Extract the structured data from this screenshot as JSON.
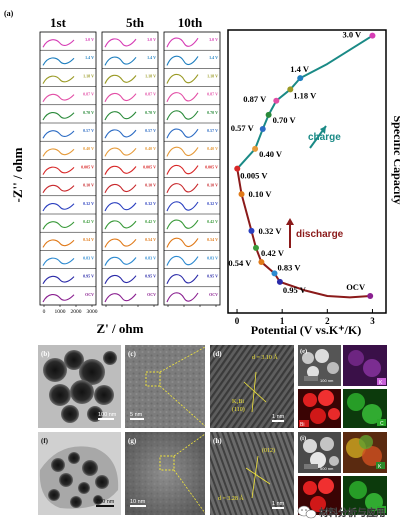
{
  "figure": {
    "panel_a_label": "(a)",
    "cycle_headers": [
      "1st",
      "5th",
      "10th"
    ],
    "ylabel": "-Z'' / ohm",
    "xlabel": "Z' / ohm",
    "x_ticks": [
      "0",
      "1000",
      "2000",
      "3000"
    ],
    "eis_rows": [
      {
        "label": "3.0 V",
        "color": "#d63db5"
      },
      {
        "label": "1.4 V",
        "color": "#1f7fbf"
      },
      {
        "label": "1.18 V",
        "color": "#9a9a25"
      },
      {
        "label": "0.87 V",
        "color": "#e24ea6"
      },
      {
        "label": "0.70 V",
        "color": "#2a8a3a"
      },
      {
        "label": "0.57 V",
        "color": "#2d6cc4"
      },
      {
        "label": "0.40 V",
        "color": "#e59a3a"
      },
      {
        "label": "0.005 V",
        "color": "#d82828"
      },
      {
        "label": "0.10 V",
        "color": "#c8282c"
      },
      {
        "label": "0.32 V",
        "color": "#2a3fbf"
      },
      {
        "label": "0.42 V",
        "color": "#3a9a3a"
      },
      {
        "label": "0.54 V",
        "color": "#e07a1a"
      },
      {
        "label": "0.83 V",
        "color": "#2d8ad0"
      },
      {
        "label": "0.95 V",
        "color": "#2a2aa8"
      },
      {
        "label": "OCV",
        "color": "#8a2090"
      }
    ]
  },
  "chart_data": {
    "type": "line",
    "title": "",
    "xlabel": "Potential (V vs.K⁺/K)",
    "ylabel": "Specific Capacity",
    "x_ticks": [
      0,
      1,
      2,
      3
    ],
    "xlim": [
      -0.2,
      3.3
    ],
    "ylim": [
      0,
      1
    ],
    "series": [
      {
        "name": "discharge",
        "color": "#8b1a1a",
        "x": [
          2.95,
          2.5,
          2.0,
          1.5,
          0.95,
          0.83,
          0.54,
          0.42,
          0.32,
          0.1,
          0.005
        ],
        "y": [
          0.06,
          0.055,
          0.06,
          0.08,
          0.11,
          0.14,
          0.18,
          0.23,
          0.29,
          0.42,
          0.51
        ]
      },
      {
        "name": "charge",
        "color": "#1a8a86",
        "x": [
          0.005,
          0.4,
          0.57,
          0.7,
          0.87,
          1.18,
          1.4,
          2.0,
          2.5,
          3.0
        ],
        "y": [
          0.51,
          0.58,
          0.65,
          0.7,
          0.75,
          0.79,
          0.83,
          0.88,
          0.93,
          0.98
        ]
      }
    ],
    "points": [
      {
        "label": "3.0 V",
        "x": 3.0,
        "y": 0.98,
        "color": "#d63db5"
      },
      {
        "label": "1.4 V",
        "x": 1.4,
        "y": 0.83,
        "color": "#1f7fbf"
      },
      {
        "label": "1.18 V",
        "x": 1.18,
        "y": 0.79,
        "color": "#9a9a25"
      },
      {
        "label": "0.87 V",
        "x": 0.87,
        "y": 0.75,
        "color": "#e24ea6"
      },
      {
        "label": "0.70 V",
        "x": 0.7,
        "y": 0.7,
        "color": "#2a8a3a"
      },
      {
        "label": "0.57 V",
        "x": 0.57,
        "y": 0.65,
        "color": "#2d6cc4"
      },
      {
        "label": "0.40 V",
        "x": 0.4,
        "y": 0.58,
        "color": "#e59a3a"
      },
      {
        "label": "0.005 V",
        "x": 0.005,
        "y": 0.51,
        "color": "#d82828"
      },
      {
        "label": "0.10 V",
        "x": 0.1,
        "y": 0.42,
        "color": "#e07a1a"
      },
      {
        "label": "0.32 V",
        "x": 0.32,
        "y": 0.29,
        "color": "#2a3fbf"
      },
      {
        "label": "0.42 V",
        "x": 0.42,
        "y": 0.23,
        "color": "#3a9a3a"
      },
      {
        "label": "0.54 V",
        "x": 0.54,
        "y": 0.18,
        "color": "#e07a1a"
      },
      {
        "label": "0.83 V",
        "x": 0.83,
        "y": 0.14,
        "color": "#2d8ad0"
      },
      {
        "label": "0.95 V",
        "x": 0.95,
        "y": 0.11,
        "color": "#2a2aa8"
      },
      {
        "label": "OCV",
        "x": 2.95,
        "y": 0.06,
        "color": "#8a2090"
      }
    ],
    "annotations": {
      "charge": "charge",
      "discharge": "discharge"
    }
  },
  "tem_panels": {
    "b": {
      "label": "(b)",
      "scale": "100 nm"
    },
    "c": {
      "label": "(c)",
      "scale": "5 nm"
    },
    "d": {
      "label": "(d)",
      "d_spacing": "d = 3.10 Å",
      "phase": "K₂Bi",
      "plane": "(110)",
      "scale": "1 nm"
    },
    "e": {
      "label": "(e)",
      "scale": "100 nm",
      "elements": [
        "K",
        "Bi",
        "C"
      ]
    },
    "f": {
      "label": "(f)",
      "scale": "200 nm"
    },
    "g": {
      "label": "(g)",
      "scale": "10 nm"
    },
    "h": {
      "label": "(h)",
      "plane": "(012)",
      "d_spacing": "d = 3.28 Å",
      "scale": "1 nm"
    },
    "i": {
      "label": "(i)",
      "scale": "500 nm",
      "elements": [
        "K",
        "Bi",
        "C"
      ]
    }
  },
  "watermark": {
    "text": "材料分析与应用",
    "icon": "wechat-icon"
  }
}
